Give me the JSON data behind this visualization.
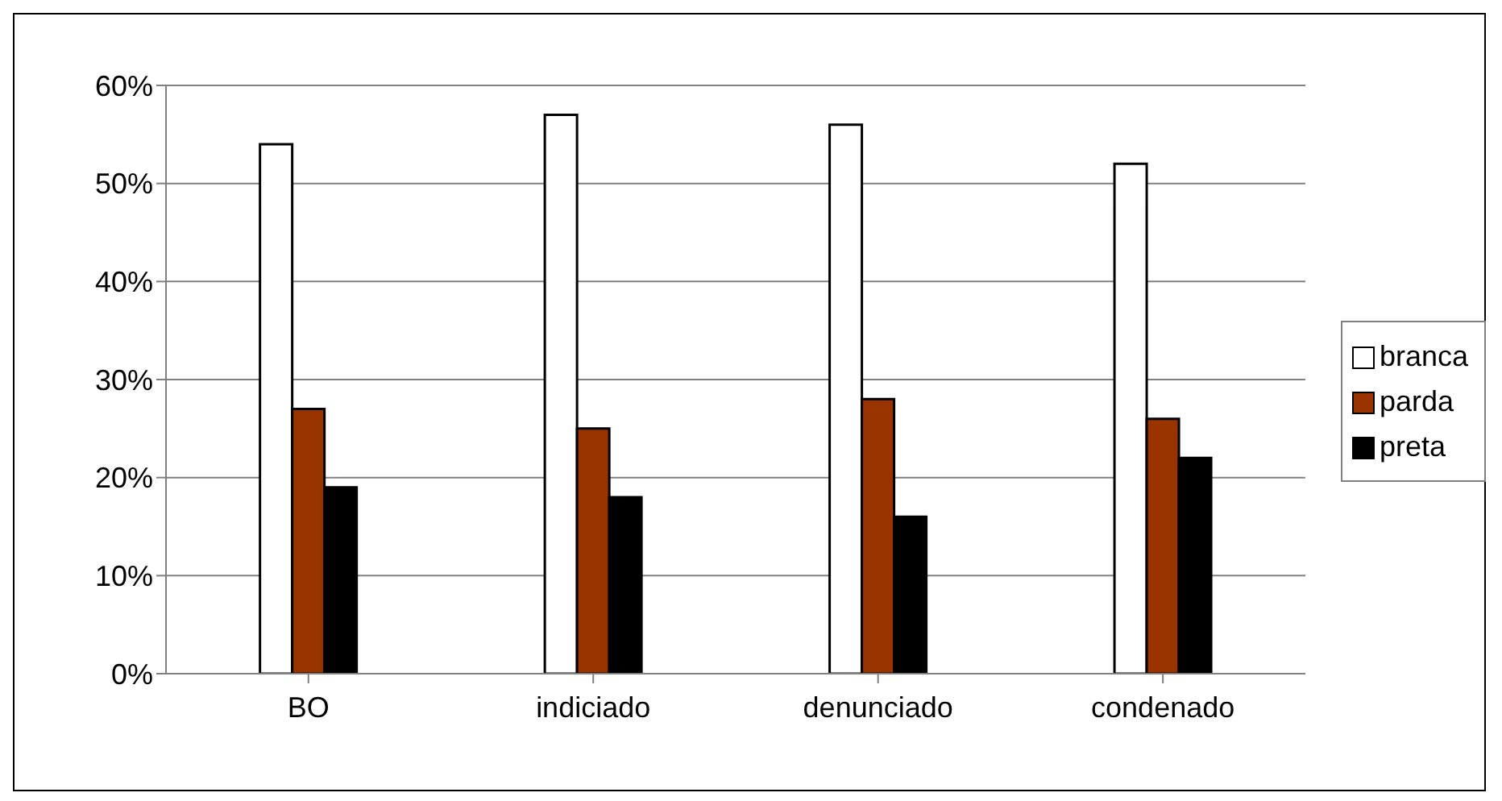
{
  "chart_data": {
    "type": "bar",
    "categories": [
      "BO",
      "indiciado",
      "denunciado",
      "condenado"
    ],
    "series": [
      {
        "name": "branca",
        "color": "#ffffff",
        "values": [
          54,
          57,
          56,
          52
        ]
      },
      {
        "name": "parda",
        "color": "#993300",
        "values": [
          27,
          25,
          28,
          26
        ]
      },
      {
        "name": "preta",
        "color": "#000000",
        "values": [
          19,
          18,
          16,
          22
        ]
      }
    ],
    "ylim": [
      0,
      60
    ],
    "yticks": [
      {
        "value": 0,
        "label": "0%"
      },
      {
        "value": 10,
        "label": "10%"
      },
      {
        "value": 20,
        "label": "20%"
      },
      {
        "value": 30,
        "label": "30%"
      },
      {
        "value": 40,
        "label": "40%"
      },
      {
        "value": 50,
        "label": "50%"
      },
      {
        "value": 60,
        "label": "60%"
      }
    ],
    "grid": "y",
    "legend": "right"
  }
}
